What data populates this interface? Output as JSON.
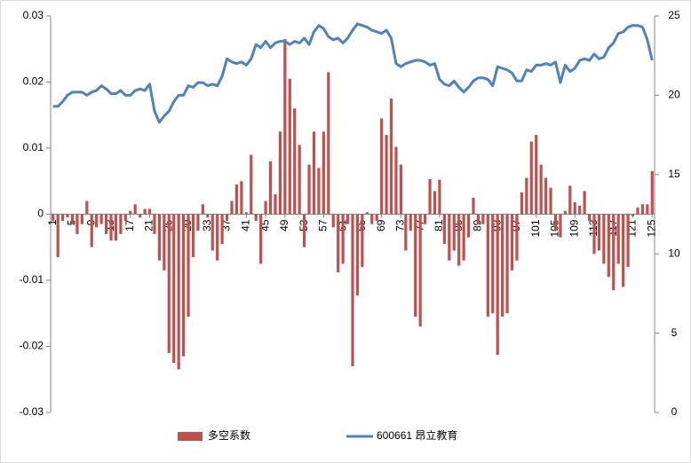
{
  "chart_data": {
    "type": "bar",
    "categories": [
      "1",
      null,
      null,
      null,
      "5",
      null,
      null,
      null,
      "9",
      null,
      null,
      null,
      "13",
      null,
      null,
      null,
      "17",
      null,
      null,
      null,
      "21",
      null,
      null,
      null,
      "25",
      null,
      null,
      null,
      "29",
      null,
      null,
      null,
      "33",
      null,
      null,
      null,
      "37",
      null,
      null,
      null,
      "41",
      null,
      null,
      null,
      "45",
      null,
      null,
      null,
      "49",
      null,
      null,
      null,
      "53",
      null,
      null,
      null,
      "57",
      null,
      null,
      null,
      "61",
      null,
      null,
      null,
      "65",
      null,
      null,
      null,
      "69",
      null,
      null,
      null,
      "73",
      null,
      null,
      null,
      "77",
      null,
      null,
      null,
      "81",
      null,
      null,
      null,
      "85",
      null,
      null,
      null,
      "89",
      null,
      null,
      null,
      "93",
      null,
      null,
      null,
      "97",
      null,
      null,
      null,
      "101",
      null,
      null,
      null,
      "105",
      null,
      null,
      null,
      "109",
      null,
      null,
      null,
      "113",
      null,
      null,
      null,
      "117",
      null,
      null,
      null,
      "121",
      null,
      null,
      null,
      "125"
    ],
    "series": [
      {
        "name": "多空系数",
        "color": "#c0504d",
        "values": [
          -0.001,
          -0.0065,
          -0.001,
          -0.0005,
          -0.0015,
          -0.003,
          -0.0015,
          0.002,
          -0.005,
          -0.002,
          -0.0015,
          -0.003,
          -0.004,
          -0.004,
          -0.003,
          -0.001,
          0.0005,
          0.0015,
          -0.0005,
          0.0008,
          0.0008,
          -0.003,
          -0.007,
          -0.0085,
          -0.021,
          -0.0225,
          -0.0235,
          -0.0215,
          -0.0155,
          -0.0065,
          -0.0025,
          0.0015,
          -0.0005,
          -0.0055,
          -0.007,
          -0.0045,
          -0.001,
          0.002,
          0.0045,
          0.005,
          0.0003,
          0.009,
          -0.001,
          -0.0075,
          0.002,
          0.008,
          0.003,
          0.0125,
          0.0265,
          0.0205,
          0.016,
          0.0105,
          -0.005,
          0.0075,
          0.0125,
          0.007,
          0.0125,
          0.0215,
          -0.002,
          -0.0088,
          -0.0075,
          -0.0015,
          -0.023,
          -0.0123,
          -0.008,
          0.0003,
          -0.0015,
          -0.001,
          0.0145,
          0.012,
          0.0175,
          0.0102,
          0.0075,
          -0.0055,
          -0.0025,
          -0.0155,
          -0.017,
          -0.0015,
          0.0053,
          0.0035,
          0.0052,
          -0.0045,
          -0.007,
          -0.0055,
          -0.0078,
          -0.007,
          -0.0035,
          0.0025,
          -0.0015,
          -0.0015,
          -0.0155,
          -0.015,
          -0.0213,
          -0.0155,
          -0.015,
          -0.0085,
          -0.007,
          0.0033,
          0.0055,
          0.011,
          0.012,
          0.0075,
          0.0055,
          0.004,
          -0.0025,
          -0.0035,
          0.0005,
          0.0043,
          0.0018,
          0.0013,
          0.0035,
          -0.001,
          -0.006,
          -0.0055,
          -0.0075,
          -0.0095,
          -0.0115,
          -0.0075,
          -0.011,
          -0.008,
          -0.0003,
          0.001,
          0.0015,
          0.0015,
          0.0065
        ]
      },
      {
        "name": "600661 昂立教育",
        "color": "#4f81bd",
        "type": "line",
        "axis": "y2",
        "values": [
          19.3,
          19.3,
          19.6,
          20.0,
          20.2,
          20.2,
          20.2,
          20.0,
          20.2,
          20.3,
          20.6,
          20.4,
          20.1,
          20.1,
          20.3,
          20.0,
          20.0,
          20.3,
          20.4,
          20.3,
          20.7,
          19.0,
          18.3,
          18.7,
          19.0,
          19.6,
          20.0,
          20.0,
          20.6,
          20.5,
          20.8,
          20.8,
          20.6,
          20.7,
          20.6,
          21.2,
          22.3,
          22.1,
          22.0,
          22.1,
          21.9,
          22.3,
          23.2,
          23.0,
          23.4,
          23.0,
          23.3,
          23.4,
          23.4,
          23.2,
          23.4,
          23.3,
          23.6,
          23.2,
          24.0,
          24.4,
          24.2,
          23.7,
          23.5,
          23.6,
          23.3,
          23.6,
          24.1,
          24.5,
          24.4,
          24.3,
          24.1,
          24.0,
          23.9,
          24.1,
          23.6,
          22.0,
          21.8,
          22.0,
          22.1,
          22.2,
          22.2,
          22.1,
          21.9,
          22.0,
          21.0,
          20.7,
          20.6,
          20.9,
          20.5,
          20.2,
          20.5,
          20.9,
          21.1,
          21.1,
          21.0,
          20.6,
          21.8,
          21.7,
          21.6,
          21.4,
          20.9,
          20.9,
          21.6,
          21.5,
          21.9,
          21.9,
          22.0,
          21.9,
          22.1,
          20.8,
          21.9,
          21.5,
          21.7,
          22.2,
          22.3,
          22.2,
          22.6,
          22.3,
          22.4,
          23.0,
          23.3,
          23.9,
          24.0,
          24.3,
          24.4,
          24.4,
          24.3,
          23.5,
          22.2
        ]
      }
    ],
    "ylim": [
      -0.03,
      0.03
    ],
    "yticks": [
      -0.03,
      -0.02,
      -0.01,
      0,
      0.01,
      0.02,
      0.03
    ],
    "y2lim": [
      0,
      25
    ],
    "y2ticks": [
      0,
      5,
      10,
      15,
      20,
      25
    ],
    "grid": false,
    "legend": "bottom"
  }
}
